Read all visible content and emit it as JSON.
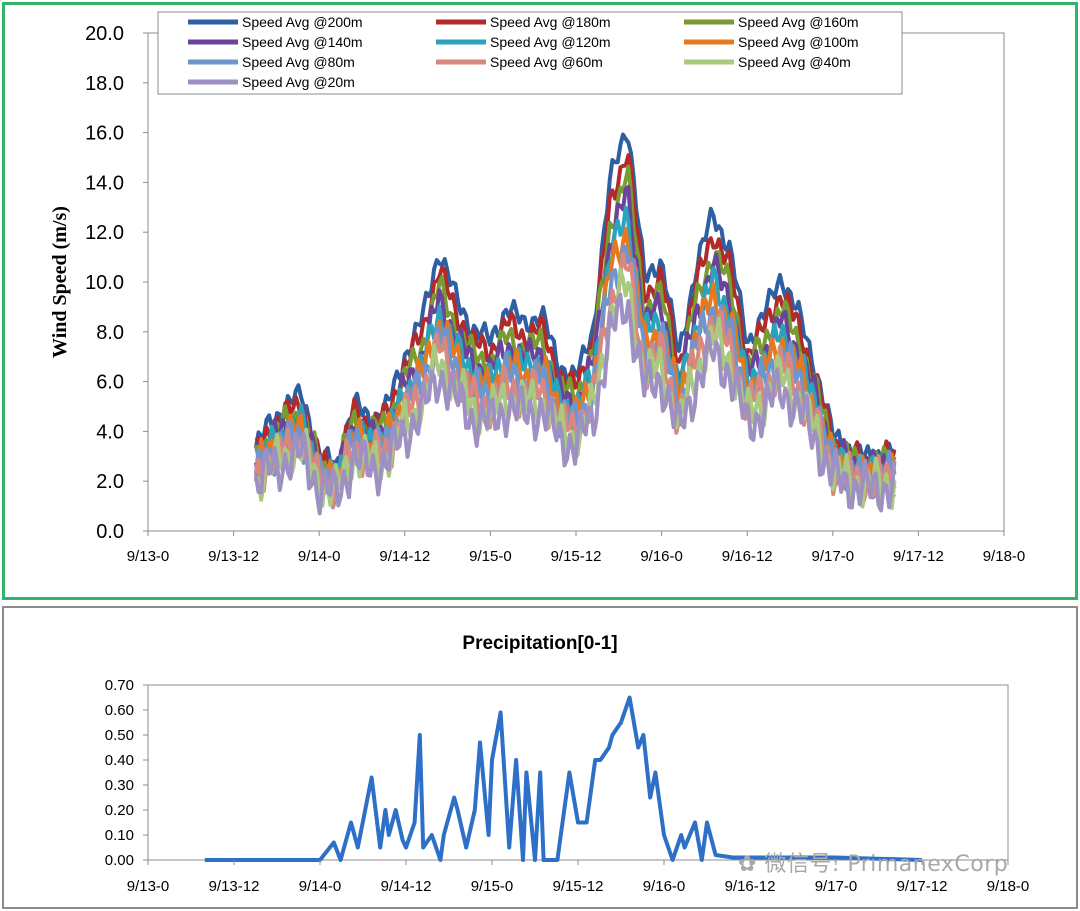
{
  "chart_data": [
    {
      "type": "line",
      "title": "",
      "xlabel": "",
      "ylabel": "Wind Speed (m/s)",
      "ylim": [
        0,
        20
      ],
      "yticks": [
        "0.0",
        "2.0",
        "4.0",
        "6.0",
        "8.0",
        "10.0",
        "12.0",
        "14.0",
        "16.0",
        "18.0",
        "20.0"
      ],
      "xlim": [
        0,
        5
      ],
      "x_unit": "days from 9/13-0",
      "xticks": [
        "9/13-0",
        "9/13-12",
        "9/14-0",
        "9/14-12",
        "9/15-0",
        "9/15-12",
        "9/16-0",
        "9/16-12",
        "9/17-0",
        "9/17-12",
        "9/18-0"
      ],
      "grid": false,
      "legend_position": "top",
      "base_series": {
        "x": [
          0.63,
          0.7,
          0.8,
          0.9,
          1.0,
          1.1,
          1.2,
          1.3,
          1.4,
          1.5,
          1.6,
          1.7,
          1.8,
          1.9,
          2.0,
          2.1,
          2.2,
          2.3,
          2.4,
          2.5,
          2.6,
          2.7,
          2.8,
          2.9,
          3.0,
          3.1,
          3.2,
          3.3,
          3.4,
          3.5,
          3.6,
          3.7,
          3.8,
          3.9,
          4.0,
          4.1,
          4.2,
          4.3,
          4.36
        ],
        "values": [
          2.6,
          3.3,
          3.9,
          4.3,
          2.4,
          2.0,
          4.0,
          3.5,
          3.9,
          5.5,
          6.6,
          8.8,
          7.3,
          6.3,
          6.0,
          7.0,
          6.5,
          6.8,
          5.2,
          4.8,
          6.3,
          11.0,
          12.8,
          7.9,
          8.5,
          5.5,
          8.2,
          10.0,
          8.8,
          5.9,
          6.8,
          8.0,
          6.8,
          5.1,
          3.0,
          2.6,
          2.3,
          2.5,
          2.5
        ]
      },
      "series": [
        {
          "name": "Speed Avg @200m",
          "color": "#2e5fa3",
          "scale": 1.28
        },
        {
          "name": "Speed Avg @180m",
          "color": "#b22a2a",
          "scale": 1.2
        },
        {
          "name": "Speed Avg @160m",
          "color": "#7a9a32",
          "scale": 1.12
        },
        {
          "name": "Speed Avg @140m",
          "color": "#6a449a",
          "scale": 1.06
        },
        {
          "name": "Speed Avg @120m",
          "color": "#2aa3bd",
          "scale": 1.0
        },
        {
          "name": "Speed Avg @100m",
          "color": "#e67820",
          "scale": 0.95
        },
        {
          "name": "Speed Avg @80m",
          "color": "#6f95cf",
          "scale": 0.9
        },
        {
          "name": "Speed Avg @60m",
          "color": "#d98880",
          "scale": 0.84
        },
        {
          "name": "Speed Avg @40m",
          "color": "#a9c97f",
          "scale": 0.78
        },
        {
          "name": "Speed Avg @20m",
          "color": "#9f90c3",
          "scale": 0.72
        }
      ]
    },
    {
      "type": "line",
      "title": "Precipitation[0-1]",
      "xlabel": "",
      "ylabel": "",
      "ylim": [
        0,
        0.7
      ],
      "yticks": [
        "0.00",
        "0.10",
        "0.20",
        "0.30",
        "0.40",
        "0.50",
        "0.60",
        "0.70"
      ],
      "xlim": [
        0,
        5
      ],
      "x_unit": "days from 9/13-0",
      "xticks": [
        "9/13-0",
        "9/13-12",
        "9/14-0",
        "9/14-12",
        "9/15-0",
        "9/15-12",
        "9/16-0",
        "9/16-12",
        "9/17-0",
        "9/17-12",
        "9/18-0"
      ],
      "grid": false,
      "series": [
        {
          "name": "",
          "color": "#2e6fc7",
          "x": [
            0.33,
            0.8,
            1.0,
            1.08,
            1.12,
            1.18,
            1.22,
            1.3,
            1.35,
            1.38,
            1.4,
            1.44,
            1.48,
            1.5,
            1.55,
            1.58,
            1.6,
            1.65,
            1.7,
            1.72,
            1.78,
            1.8,
            1.85,
            1.9,
            1.93,
            1.98,
            2.0,
            2.05,
            2.1,
            2.14,
            2.18,
            2.2,
            2.25,
            2.28,
            2.3,
            2.35,
            2.38,
            2.4,
            2.45,
            2.5,
            2.55,
            2.6,
            2.63,
            2.68,
            2.7,
            2.75,
            2.8,
            2.85,
            2.88,
            2.92,
            2.95,
            3.0,
            3.05,
            3.1,
            3.12,
            3.18,
            3.22,
            3.25,
            3.3,
            3.4,
            4.0,
            4.5
          ],
          "values": [
            0.0,
            0.0,
            0.0,
            0.07,
            0.0,
            0.15,
            0.05,
            0.33,
            0.05,
            0.2,
            0.1,
            0.2,
            0.08,
            0.05,
            0.15,
            0.5,
            0.05,
            0.1,
            0.0,
            0.1,
            0.25,
            0.2,
            0.05,
            0.2,
            0.47,
            0.1,
            0.4,
            0.59,
            0.05,
            0.4,
            0.0,
            0.35,
            0.0,
            0.35,
            0.0,
            0.0,
            0.0,
            0.1,
            0.35,
            0.15,
            0.15,
            0.4,
            0.4,
            0.45,
            0.5,
            0.55,
            0.65,
            0.45,
            0.5,
            0.25,
            0.35,
            0.1,
            0.0,
            0.1,
            0.05,
            0.15,
            0.0,
            0.15,
            0.02,
            0.01,
            0.01,
            0.0
          ]
        }
      ]
    }
  ]
}
